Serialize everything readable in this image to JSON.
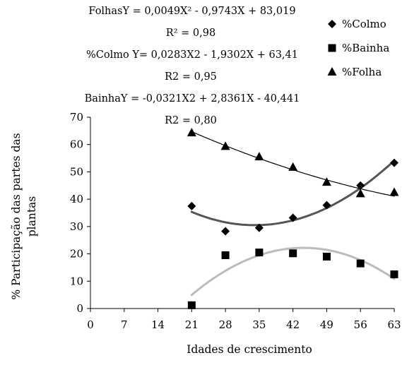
{
  "chart_data": {
    "type": "scatter",
    "xlabel": "Idades de crescimento",
    "ylabel_lines": [
      "% Participação das partes das",
      "plantas"
    ],
    "x_ticks": [
      0,
      7,
      14,
      21,
      28,
      35,
      42,
      49,
      56,
      63
    ],
    "y_ticks": [
      0,
      10,
      20,
      30,
      40,
      50,
      60,
      70
    ],
    "xlim": [
      0,
      63
    ],
    "ylim": [
      0,
      70
    ],
    "grid": false,
    "legend_placement": "top-right",
    "annotations": [
      {
        "key": "folhas_eq",
        "text": "FolhasY = 0,0049X² - 0,9743X + 83,019"
      },
      {
        "key": "folhas_r2",
        "text": "R² = 0,98"
      },
      {
        "key": "colmo_eq",
        "text": "%Colmo Y= 0,0283X2 - 1,9302X + 63,41"
      },
      {
        "key": "colmo_r2",
        "text": "R2 = 0,95"
      },
      {
        "key": "bainha_eq",
        "text": "BainhaY = -0,0321X2 + 2,8361X - 40,441"
      },
      {
        "key": "bainha_r2",
        "text": "R2 = 0,80"
      }
    ],
    "series": [
      {
        "name": "%Colmo",
        "marker": "diamond",
        "color": "#000000",
        "trend_color": "#555555",
        "x": [
          21,
          28,
          35,
          42,
          49,
          56,
          63
        ],
        "y": [
          37.5,
          28.3,
          29.5,
          33.2,
          37.8,
          45.0,
          53.3
        ],
        "trend": {
          "a": 0.0283,
          "b": -1.9302,
          "c": 63.41,
          "x_range": [
            21,
            63
          ]
        }
      },
      {
        "name": "%Bainha",
        "marker": "square",
        "color": "#000000",
        "trend_color": "#bbbbbb",
        "x": [
          21,
          28,
          35,
          42,
          49,
          56,
          63
        ],
        "y": [
          1.2,
          19.5,
          20.5,
          20.2,
          19.0,
          16.5,
          12.5
        ],
        "trend": {
          "a": -0.0321,
          "b": 2.8361,
          "c": -40.441,
          "x_range": [
            21,
            63
          ]
        }
      },
      {
        "name": "%Folha",
        "marker": "triangle",
        "color": "#000000",
        "trend_color": "#000000",
        "x": [
          21,
          28,
          35,
          42,
          49,
          56,
          63
        ],
        "y": [
          64.3,
          59.3,
          55.5,
          51.7,
          46.2,
          42.0,
          42.5
        ],
        "trend": {
          "a": 0.0049,
          "b": -0.9743,
          "c": 83.019,
          "x_range": [
            21,
            63
          ]
        }
      }
    ]
  }
}
